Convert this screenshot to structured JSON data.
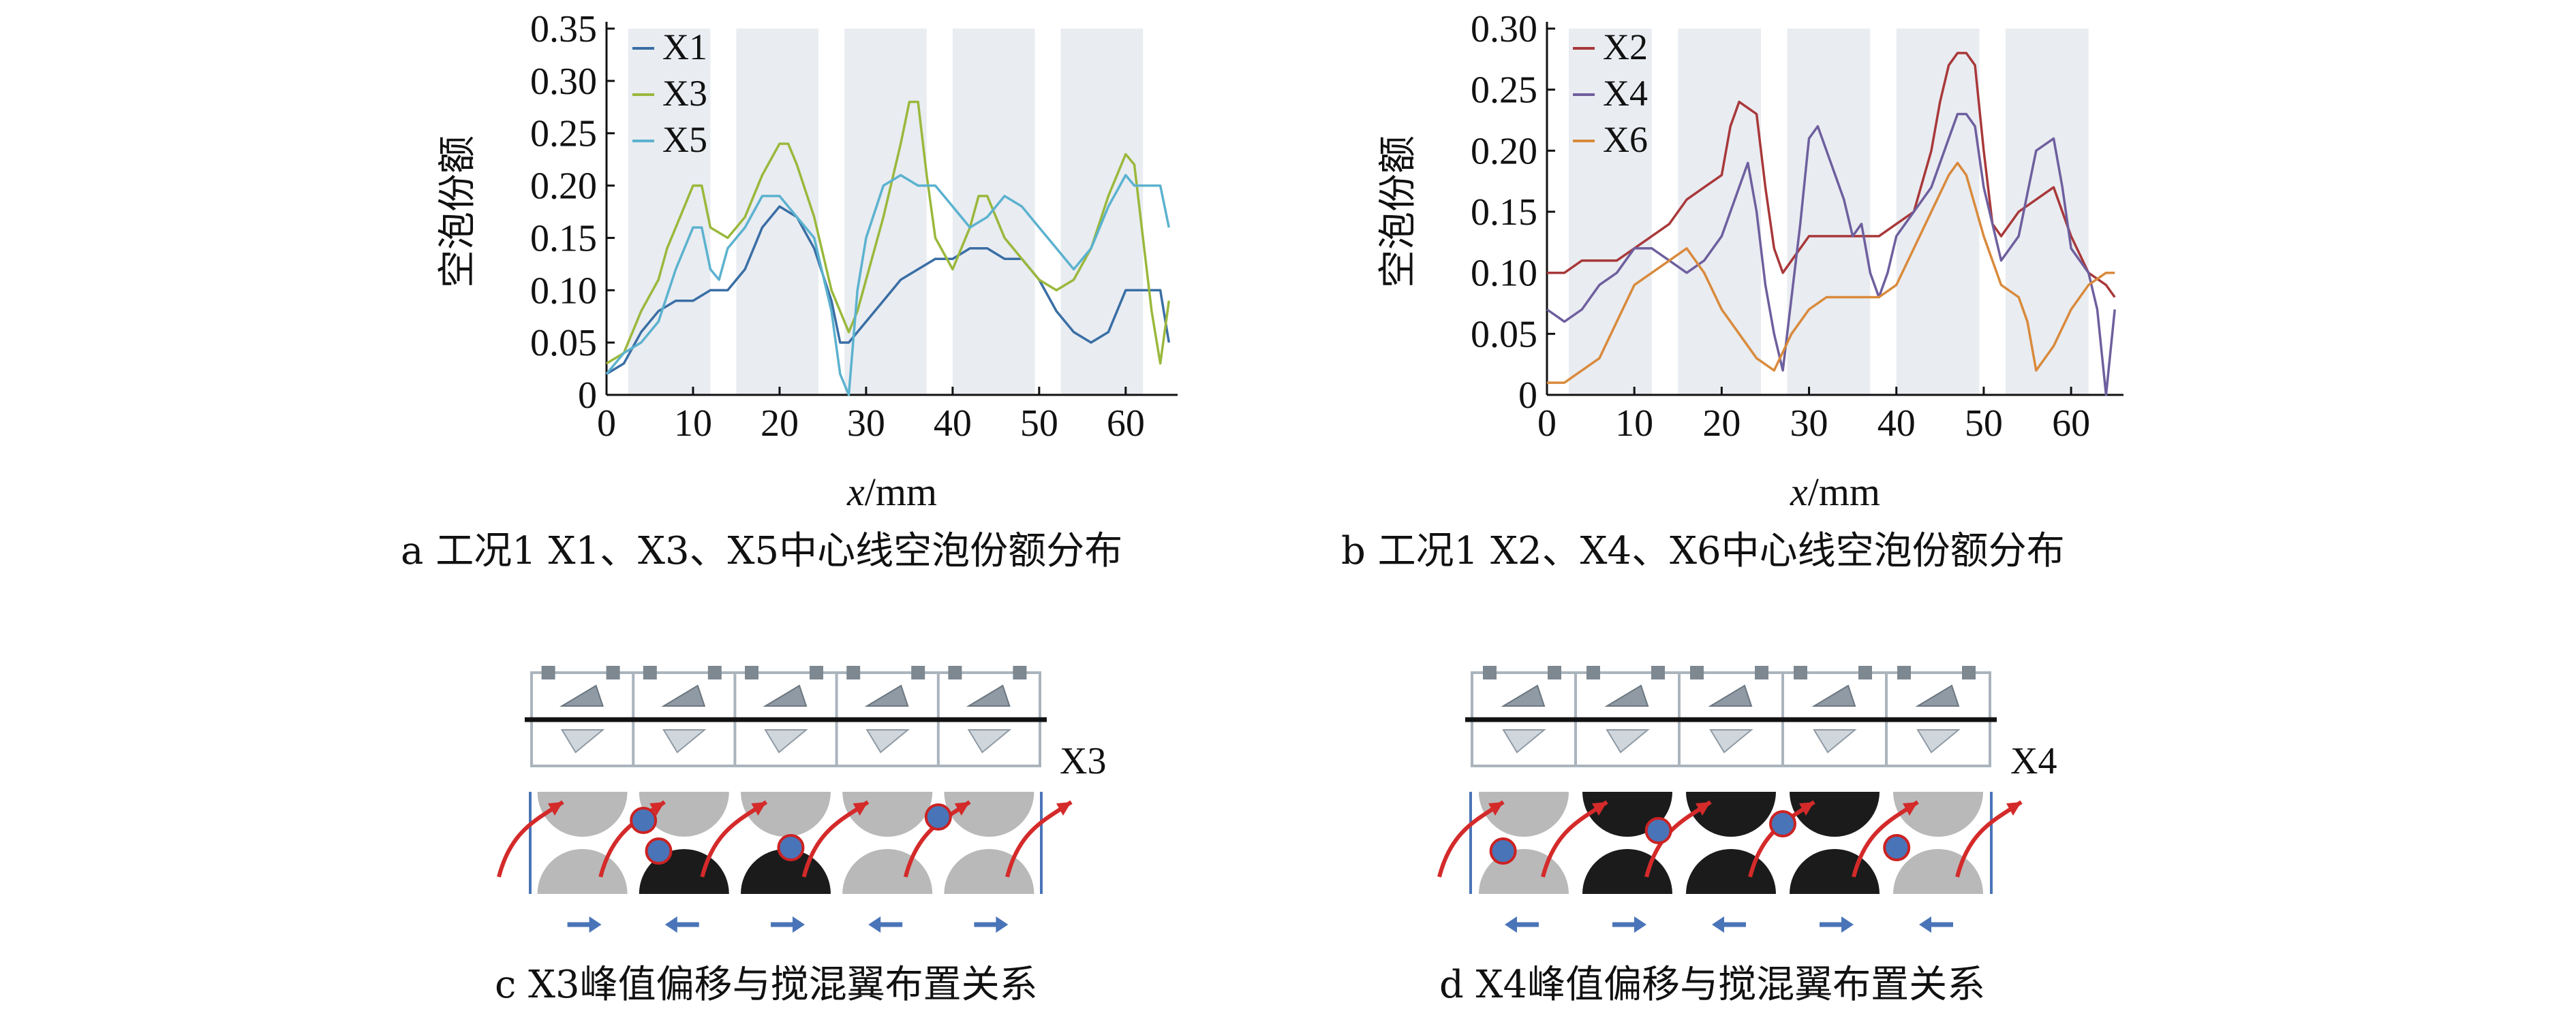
{
  "captions": {
    "a": "a  工况1 X1、X3、X5中心线空泡份额分布",
    "b": "b  工况1 X2、X4、X6中心线空泡份额分布",
    "c": "c  X3峰值偏移与搅混翼布置关系",
    "d": "d  X4峰值偏移与搅混翼布置关系"
  },
  "schematic_labels": {
    "c": "X3",
    "d": "X4"
  },
  "colors": {
    "X1": "#3a6ea5",
    "X3": "#9ab83c",
    "X5": "#5bb2cf",
    "X2": "#a8383a",
    "X4": "#6e5f9e",
    "X6": "#d98a3c",
    "band": "#e9ecf1",
    "red_arrow": "#d42a2a",
    "blue_dot": "#4a74b8",
    "light_circle": "#b9b9b9",
    "dark_circle": "#1b1b1b",
    "blue_arrow": "#4a74b8"
  },
  "chart_data": [
    {
      "type": "line",
      "panel": "a",
      "xlabel": "x/mm",
      "ylabel": "空泡份额",
      "xlim": [
        0,
        66
      ],
      "ylim": [
        0,
        0.35
      ],
      "xticks": [
        "0",
        "10",
        "20",
        "30",
        "40",
        "50",
        "60"
      ],
      "yticks": [
        "0",
        "0.05",
        "0.10",
        "0.15",
        "0.20",
        "0.25",
        "0.30",
        "0.35"
      ],
      "shaded_bands_x": [
        [
          2.5,
          12
        ],
        [
          15,
          24.5
        ],
        [
          27.5,
          37
        ],
        [
          40,
          49.5
        ],
        [
          52.5,
          62
        ]
      ],
      "legend": "top-left",
      "series": [
        {
          "name": "X1",
          "x": [
            0,
            2,
            4,
            6,
            8,
            10,
            12,
            14,
            16,
            18,
            20,
            22,
            24,
            26,
            27,
            28,
            30,
            32,
            34,
            36,
            38,
            40,
            42,
            44,
            46,
            48,
            50,
            52,
            54,
            56,
            58,
            60,
            62,
            64,
            65
          ],
          "y": [
            0.02,
            0.03,
            0.06,
            0.08,
            0.09,
            0.09,
            0.1,
            0.1,
            0.12,
            0.16,
            0.18,
            0.17,
            0.14,
            0.09,
            0.05,
            0.05,
            0.07,
            0.09,
            0.11,
            0.12,
            0.13,
            0.13,
            0.14,
            0.14,
            0.13,
            0.13,
            0.11,
            0.08,
            0.06,
            0.05,
            0.06,
            0.1,
            0.1,
            0.1,
            0.05
          ]
        },
        {
          "name": "X3",
          "x": [
            0,
            2,
            4,
            6,
            7,
            8,
            10,
            11,
            12,
            14,
            16,
            18,
            20,
            21,
            22,
            24,
            26,
            28,
            29,
            30,
            32,
            34,
            35,
            36,
            37,
            38,
            40,
            42,
            43,
            44,
            46,
            48,
            50,
            52,
            54,
            56,
            58,
            60,
            61,
            62,
            63,
            64,
            65
          ],
          "y": [
            0.03,
            0.04,
            0.08,
            0.11,
            0.14,
            0.16,
            0.2,
            0.2,
            0.16,
            0.15,
            0.17,
            0.21,
            0.24,
            0.24,
            0.22,
            0.17,
            0.1,
            0.06,
            0.08,
            0.11,
            0.17,
            0.24,
            0.28,
            0.28,
            0.21,
            0.15,
            0.12,
            0.16,
            0.19,
            0.19,
            0.15,
            0.13,
            0.11,
            0.1,
            0.11,
            0.14,
            0.19,
            0.23,
            0.22,
            0.15,
            0.08,
            0.03,
            0.09
          ]
        },
        {
          "name": "X5",
          "x": [
            0,
            2,
            4,
            6,
            8,
            10,
            11,
            12,
            13,
            14,
            16,
            18,
            20,
            22,
            24,
            26,
            27,
            28,
            29,
            30,
            32,
            34,
            36,
            38,
            40,
            42,
            44,
            46,
            48,
            50,
            52,
            54,
            56,
            58,
            60,
            61,
            62,
            64,
            65
          ],
          "y": [
            0.02,
            0.04,
            0.05,
            0.07,
            0.12,
            0.16,
            0.16,
            0.12,
            0.11,
            0.14,
            0.16,
            0.19,
            0.19,
            0.17,
            0.15,
            0.08,
            0.02,
            0.0,
            0.1,
            0.15,
            0.2,
            0.21,
            0.2,
            0.2,
            0.18,
            0.16,
            0.17,
            0.19,
            0.18,
            0.16,
            0.14,
            0.12,
            0.14,
            0.18,
            0.21,
            0.2,
            0.2,
            0.2,
            0.16
          ]
        }
      ]
    },
    {
      "type": "line",
      "panel": "b",
      "xlabel": "x/mm",
      "ylabel": "空泡份额",
      "xlim": [
        0,
        66
      ],
      "ylim": [
        0,
        0.3
      ],
      "xticks": [
        "0",
        "10",
        "20",
        "30",
        "40",
        "50",
        "60"
      ],
      "yticks": [
        "0",
        "0.05",
        "0.10",
        "0.15",
        "0.20",
        "0.25",
        "0.30"
      ],
      "shaded_bands_x": [
        [
          2.5,
          12
        ],
        [
          15,
          24.5
        ],
        [
          27.5,
          37
        ],
        [
          40,
          49.5
        ],
        [
          52.5,
          62
        ]
      ],
      "legend": "top-left",
      "series": [
        {
          "name": "X2",
          "x": [
            0,
            2,
            4,
            6,
            8,
            10,
            12,
            14,
            16,
            18,
            20,
            21,
            22,
            24,
            25,
            26,
            27,
            28,
            30,
            32,
            34,
            36,
            38,
            40,
            42,
            44,
            45,
            46,
            47,
            48,
            49,
            50,
            51,
            52,
            54,
            56,
            58,
            60,
            62,
            64,
            65
          ],
          "y": [
            0.1,
            0.1,
            0.11,
            0.11,
            0.11,
            0.12,
            0.13,
            0.14,
            0.16,
            0.17,
            0.18,
            0.22,
            0.24,
            0.23,
            0.17,
            0.12,
            0.1,
            0.11,
            0.13,
            0.13,
            0.13,
            0.13,
            0.13,
            0.14,
            0.15,
            0.2,
            0.24,
            0.27,
            0.28,
            0.28,
            0.27,
            0.2,
            0.14,
            0.13,
            0.15,
            0.16,
            0.17,
            0.13,
            0.1,
            0.09,
            0.08
          ]
        },
        {
          "name": "X4",
          "x": [
            0,
            2,
            4,
            6,
            8,
            10,
            12,
            14,
            16,
            18,
            20,
            22,
            23,
            24,
            25,
            26,
            27,
            28,
            29,
            30,
            31,
            32,
            34,
            35,
            36,
            37,
            38,
            39,
            40,
            42,
            44,
            46,
            47,
            48,
            49,
            50,
            52,
            54,
            56,
            58,
            59,
            60,
            62,
            63,
            64,
            65
          ],
          "y": [
            0.07,
            0.06,
            0.07,
            0.09,
            0.1,
            0.12,
            0.12,
            0.11,
            0.1,
            0.11,
            0.13,
            0.17,
            0.19,
            0.15,
            0.09,
            0.05,
            0.02,
            0.08,
            0.14,
            0.21,
            0.22,
            0.2,
            0.16,
            0.13,
            0.14,
            0.1,
            0.08,
            0.1,
            0.13,
            0.15,
            0.17,
            0.21,
            0.23,
            0.23,
            0.22,
            0.17,
            0.11,
            0.13,
            0.2,
            0.21,
            0.17,
            0.12,
            0.1,
            0.07,
            0.0,
            0.07
          ]
        },
        {
          "name": "X6",
          "x": [
            0,
            2,
            4,
            6,
            8,
            10,
            12,
            14,
            16,
            18,
            20,
            22,
            24,
            26,
            28,
            30,
            32,
            34,
            36,
            38,
            40,
            42,
            44,
            46,
            47,
            48,
            50,
            52,
            54,
            55,
            56,
            58,
            60,
            62,
            64,
            65
          ],
          "y": [
            0.01,
            0.01,
            0.02,
            0.03,
            0.06,
            0.09,
            0.1,
            0.11,
            0.12,
            0.1,
            0.07,
            0.05,
            0.03,
            0.02,
            0.05,
            0.07,
            0.08,
            0.08,
            0.08,
            0.08,
            0.09,
            0.12,
            0.15,
            0.18,
            0.19,
            0.18,
            0.13,
            0.09,
            0.08,
            0.06,
            0.02,
            0.04,
            0.07,
            0.09,
            0.1,
            0.1
          ]
        }
      ]
    }
  ]
}
